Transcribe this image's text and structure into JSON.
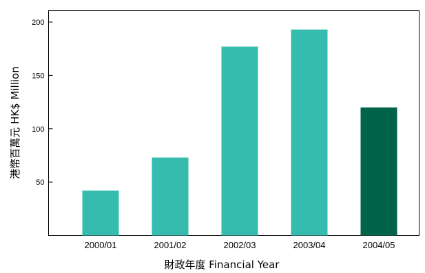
{
  "chart_data": {
    "type": "bar",
    "title": "",
    "xlabel": "財政年度 Financial Year",
    "ylabel": "港幣百萬元 HK$ Million",
    "categories": [
      "2000/01",
      "2001/02",
      "2002/03",
      "2003/04",
      "2004/05"
    ],
    "values": [
      42,
      73,
      177,
      193,
      120
    ],
    "ylim": [
      0,
      200
    ],
    "yticks": [
      50,
      100,
      150,
      200
    ],
    "grid": false,
    "legend": "none",
    "colors": {
      "bar": "#35bcae",
      "highlight_bar": "#00634a",
      "axis": "#000000"
    },
    "highlight_index": 4
  }
}
